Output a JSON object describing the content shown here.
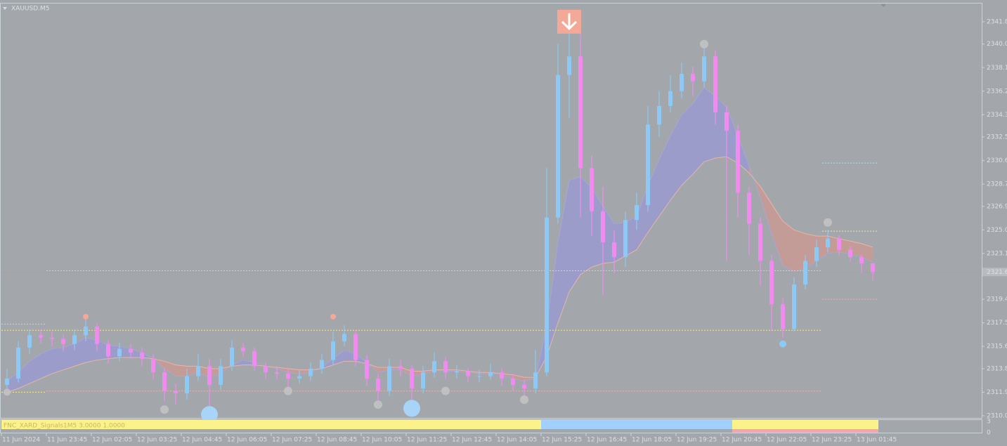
{
  "window": {
    "symbol": "XAUUSD.M5"
  },
  "chart_data": {
    "type": "candlestick",
    "categories": [
      "11 Jun 2024",
      null,
      null,
      null,
      "11 Jun 23:45",
      null,
      null,
      null,
      "12 Jun 02:05",
      null,
      null,
      null,
      "12 Jun 03:25",
      null,
      null,
      null,
      "12 Jun 04:45",
      null,
      null,
      null,
      "12 Jun 06:05",
      null,
      null,
      null,
      "12 Jun 07:25",
      null,
      null,
      null,
      "12 Jun 08:45",
      null,
      null,
      null,
      "12 Jun 10:05",
      null,
      null,
      null,
      "12 Jun 11:25",
      null,
      null,
      null,
      "12 Jun 12:45",
      null,
      null,
      null,
      "12 Jun 14:05",
      null,
      null,
      null,
      "12 Jun 15:25",
      null,
      null,
      null,
      "12 Jun 16:45",
      null,
      null,
      null,
      "12 Jun 18:05",
      null,
      null,
      null,
      "12 Jun 19:25",
      null,
      null,
      null,
      "12 Jun 20:45",
      null,
      null,
      null,
      "12 Jun 22:05",
      null,
      null,
      null,
      "12 Jun 23:25",
      null,
      null,
      null,
      "13 Jun 01:45",
      null
    ],
    "open": [
      2312.5,
      2313.0,
      2315.5,
      2316.5,
      2316.3,
      2316.2,
      2315.8,
      2316.5,
      2317.2,
      2315.8,
      2314.8,
      2315.4,
      2315.1,
      2314.6,
      2313.5,
      2312.0,
      2311.8,
      2313.2,
      2314.0,
      2312.5,
      2314.0,
      2315.5,
      2315.2,
      2314.0,
      2313.5,
      2313.4,
      2313.0,
      2313.2,
      2313.8,
      2314.5,
      2316.0,
      2316.6,
      2314.5,
      2313.0,
      2312.0,
      2314.0,
      2313.8,
      2312.2,
      2313.5,
      2314.4,
      2313.5,
      2313.6,
      2313.2,
      2313.2,
      2313.5,
      2313.0,
      2312.5,
      2312.2,
      2313.5,
      2326.0,
      2337.5,
      2339.0,
      2330.0,
      2326.5,
      2324.0,
      2322.8,
      2325.8,
      2327.0,
      2333.5,
      2335.0,
      2336.2,
      2337.6,
      2337.0,
      2339.0,
      2334.5,
      2333.0,
      2328.0,
      2325.5,
      2322.5,
      2319.0,
      2317.0,
      2320.6,
      2322.5,
      2323.6,
      2324.3,
      2323.4,
      2322.8,
      2322.3
    ],
    "high": [
      2313.8,
      2316.0,
      2317.0,
      2317.0,
      2316.8,
      2316.6,
      2317.0,
      2317.9,
      2317.5,
      2316.1,
      2315.9,
      2315.8,
      2315.5,
      2315.0,
      2313.9,
      2312.6,
      2313.8,
      2315.0,
      2314.6,
      2314.6,
      2316.1,
      2315.9,
      2315.5,
      2314.3,
      2314.0,
      2313.8,
      2313.7,
      2314.3,
      2315.0,
      2316.8,
      2317.3,
      2316.9,
      2314.9,
      2313.4,
      2314.6,
      2314.5,
      2314.1,
      2314.0,
      2315.1,
      2314.8,
      2314.1,
      2313.9,
      2313.7,
      2314.2,
      2313.9,
      2313.4,
      2312.9,
      2315.3,
      2330.0,
      2340.0,
      2341.3,
      2340.8,
      2331.0,
      2328.5,
      2325.0,
      2326.5,
      2328.0,
      2335.0,
      2336.2,
      2337.5,
      2338.5,
      2338.2,
      2340.0,
      2339.5,
      2335.0,
      2333.5,
      2328.5,
      2326.0,
      2323.0,
      2319.5,
      2321.2,
      2323.0,
      2324.2,
      2325.0,
      2324.6,
      2323.7,
      2323.0,
      2322.0
    ],
    "low": [
      2311.9,
      2312.7,
      2315.0,
      2315.8,
      2315.6,
      2315.2,
      2315.3,
      2316.0,
      2315.2,
      2314.2,
      2314.4,
      2314.6,
      2314.0,
      2312.9,
      2311.2,
      2310.9,
      2311.3,
      2312.8,
      2310.8,
      2312.1,
      2313.6,
      2314.7,
      2313.6,
      2313.0,
      2312.9,
      2312.0,
      2312.6,
      2312.8,
      2313.4,
      2314.1,
      2315.6,
      2314.0,
      2312.4,
      2311.1,
      2311.6,
      2313.2,
      2311.0,
      2311.8,
      2313.1,
      2313.0,
      2313.0,
      2312.7,
      2312.7,
      2312.9,
      2312.4,
      2312.0,
      2311.6,
      2311.8,
      2313.2,
      2325.5,
      2334.0,
      2326.0,
      2324.5,
      2319.7,
      2321.5,
      2322.0,
      2325.0,
      2326.5,
      2332.5,
      2334.5,
      2335.6,
      2335.8,
      2336.5,
      2333.5,
      2322.5,
      2326.0,
      2323.0,
      2320.5,
      2316.8,
      2316.3,
      2316.8,
      2320.2,
      2322.0,
      2323.2,
      2322.9,
      2322.4,
      2321.5,
      2320.9
    ],
    "close": [
      2313.0,
      2315.5,
      2316.5,
      2316.3,
      2316.2,
      2315.8,
      2316.5,
      2317.2,
      2315.8,
      2314.8,
      2315.4,
      2315.1,
      2314.6,
      2313.5,
      2312.0,
      2311.8,
      2313.2,
      2314.0,
      2312.5,
      2314.0,
      2315.5,
      2315.2,
      2314.0,
      2313.5,
      2313.4,
      2313.0,
      2313.2,
      2313.8,
      2314.5,
      2316.0,
      2316.6,
      2314.5,
      2313.0,
      2312.0,
      2314.0,
      2313.8,
      2312.2,
      2313.5,
      2314.4,
      2313.5,
      2313.6,
      2313.2,
      2313.2,
      2313.5,
      2313.0,
      2312.5,
      2312.2,
      2313.5,
      2326.0,
      2337.5,
      2339.0,
      2330.0,
      2326.5,
      2324.0,
      2322.8,
      2325.8,
      2327.0,
      2333.5,
      2335.0,
      2336.2,
      2337.6,
      2337.0,
      2339.0,
      2334.5,
      2333.0,
      2328.0,
      2325.5,
      2322.5,
      2319.0,
      2317.0,
      2320.6,
      2322.5,
      2323.6,
      2324.3,
      2323.4,
      2322.8,
      2322.3,
      2321.6
    ],
    "up_color": "#8ccaf5",
    "down_color": "#f08cf0",
    "moving_averages": [
      {
        "color": "#a9a6d8",
        "values": [
          2312.8,
          2313.5,
          2314.4,
          2315.0,
          2315.4,
          2315.5,
          2315.8,
          2316.3,
          2316.1,
          2315.7,
          2315.6,
          2315.4,
          2315.1,
          2314.6,
          2313.8,
          2313.2,
          2313.2,
          2313.5,
          2313.1,
          2313.4,
          2314.1,
          2314.5,
          2314.3,
          2314.0,
          2313.8,
          2313.5,
          2313.4,
          2313.5,
          2313.9,
          2314.6,
          2315.3,
          2315.0,
          2314.3,
          2313.5,
          2313.7,
          2313.7,
          2313.2,
          2313.3,
          2313.7,
          2313.6,
          2313.6,
          2313.5,
          2313.4,
          2313.4,
          2313.3,
          2313.0,
          2312.8,
          2313.0,
          2317.3,
          2324.0,
          2329.0,
          2329.3,
          2328.4,
          2326.9,
          2325.5,
          2325.6,
          2326.1,
          2328.6,
          2330.7,
          2332.6,
          2334.3,
          2335.2,
          2336.5,
          2335.8,
          2334.9,
          2332.6,
          2330.2,
          2327.6,
          2324.7,
          2322.1,
          2321.6,
          2321.9,
          2322.5,
          2323.1,
          2323.2,
          2323.1,
          2322.8,
          2322.4
        ]
      },
      {
        "color": "#e8b6a8",
        "values": [
          2311.9,
          2312.2,
          2312.6,
          2313.0,
          2313.4,
          2313.7,
          2314.0,
          2314.3,
          2314.5,
          2314.6,
          2314.7,
          2314.7,
          2314.7,
          2314.6,
          2314.4,
          2314.1,
          2314.0,
          2314.0,
          2313.8,
          2313.8,
          2314.0,
          2314.1,
          2314.1,
          2314.0,
          2313.9,
          2313.8,
          2313.7,
          2313.7,
          2313.8,
          2314.1,
          2314.4,
          2314.4,
          2314.2,
          2313.9,
          2313.9,
          2313.9,
          2313.6,
          2313.6,
          2313.7,
          2313.7,
          2313.7,
          2313.6,
          2313.5,
          2313.5,
          2313.4,
          2313.3,
          2313.1,
          2313.1,
          2314.8,
          2317.5,
          2320.0,
          2321.4,
          2322.0,
          2322.3,
          2322.4,
          2322.9,
          2323.4,
          2324.8,
          2326.1,
          2327.4,
          2328.6,
          2329.5,
          2330.5,
          2330.8,
          2330.9,
          2330.4,
          2329.6,
          2328.5,
          2327.1,
          2325.7,
          2325.0,
          2324.7,
          2324.5,
          2324.5,
          2324.3,
          2324.1,
          2323.9,
          2323.6
        ]
      }
    ],
    "band_up_color": "#9b9cc9",
    "band_down_color": "#c39c98",
    "ylim": [
      2309.77,
      2343.33
    ],
    "yticks": [
      2341.8,
      {
        "value": 2340.0,
        "label": "2340.0"
      },
      2338.1,
      2336.2,
      2334.3,
      2332.5,
      2330.6,
      2328.7,
      2326.9,
      {
        "value": 2325.0,
        "label": "2325.0"
      },
      2323.1,
      2319.4,
      2317.5,
      2315.6,
      2313.8,
      2311.9,
      {
        "value": 2310.0,
        "label": "2310.0"
      }
    ],
    "current_price": 2321.6,
    "levels": [
      {
        "value": 2321.7,
        "from": 4,
        "to": 73,
        "color": "#b8d8f0"
      },
      {
        "value": 2316.9,
        "from": 0,
        "to": 73,
        "color": "#f5ea8a"
      },
      {
        "value": 2312.0,
        "from": 4,
        "to": 73,
        "color": "#f0b0a8"
      },
      {
        "value": 2317.4,
        "from": 0,
        "to": 4,
        "color": "#b8d8f0"
      },
      {
        "value": 2311.9,
        "from": 0,
        "to": 4,
        "color": "#f5ea8a"
      },
      {
        "value": 2330.4,
        "from": 73,
        "to": 78,
        "color": "#b8d8f0"
      },
      {
        "value": 2324.9,
        "from": 73,
        "to": 78,
        "color": "#f5ea8a"
      },
      {
        "value": 2319.4,
        "from": 73,
        "to": 78,
        "color": "#f0b0a8"
      }
    ],
    "markers": [
      {
        "index": 0,
        "value": 2311.9,
        "color": "#c0c0c0",
        "size": 5
      },
      {
        "index": 7,
        "value": 2318.0,
        "color": "#f5a898",
        "size": 4
      },
      {
        "index": 14,
        "value": 2310.5,
        "color": "#c0c0c0",
        "size": 6
      },
      {
        "index": 18,
        "value": 2310.1,
        "color": "#a8d4fa",
        "size": 12
      },
      {
        "index": 25,
        "value": 2312.0,
        "color": "#c0c0c0",
        "size": 6
      },
      {
        "index": 29,
        "value": 2318.0,
        "color": "#f5a898",
        "size": 4
      },
      {
        "index": 33,
        "value": 2310.9,
        "color": "#c0c0c0",
        "size": 6
      },
      {
        "index": 36,
        "value": 2310.6,
        "color": "#a8d4fa",
        "size": 12
      },
      {
        "index": 39,
        "value": 2312.0,
        "color": "#c0c0c0",
        "size": 6
      },
      {
        "index": 46,
        "value": 2311.3,
        "color": "#c0c0c0",
        "size": 6
      },
      {
        "index": 62,
        "value": 2340.0,
        "color": "#c0c0c0",
        "size": 6
      },
      {
        "index": 69,
        "value": 2315.8,
        "color": "#8ccaf5",
        "size": 5
      },
      {
        "index": 73,
        "value": 2325.6,
        "color": "#c0c0c0",
        "size": 6
      }
    ],
    "sell_signal": {
      "index": 50,
      "value": 2340.9,
      "color": "#f4a898"
    }
  },
  "indicator": {
    "title": "FNC_XARD_Signals1M5 3.0000 1.0000",
    "ylim": [
      0,
      3
    ],
    "yticks": [
      3,
      0
    ],
    "segments": [
      {
        "from": 0,
        "to": 48,
        "color": "#fcf28c"
      },
      {
        "from": 48,
        "to": 65,
        "color": "#a3d0fa"
      },
      {
        "from": 65,
        "to": 78,
        "color": "#fcf28c"
      }
    ]
  }
}
